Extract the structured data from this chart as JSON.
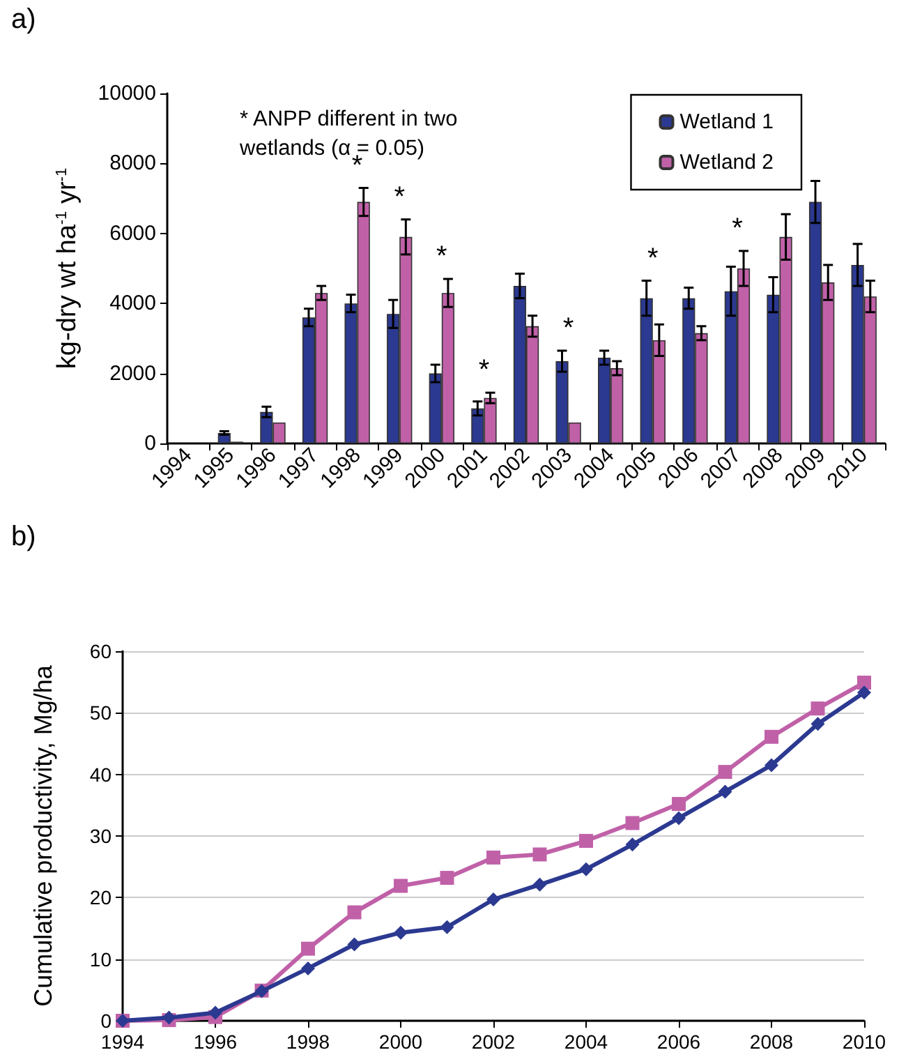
{
  "chart_data": [
    {
      "type": "bar",
      "title": "a)",
      "ylabel": "kg-dry wt ha$^{-1}$ yr$^{-1}$",
      "categories": [
        "1994",
        "1995",
        "1996",
        "1997",
        "1998",
        "1999",
        "2000",
        "2001",
        "2002",
        "2003",
        "2004",
        "2005",
        "2006",
        "2007",
        "2008",
        "2009",
        "2010"
      ],
      "series": [
        {
          "name": "Wetland 1",
          "color": "#2b3990",
          "values": [
            0,
            300,
            900,
            3600,
            4000,
            3700,
            2000,
            1000,
            4500,
            2350,
            2450,
            4150,
            4150,
            4350,
            4250,
            6900,
            5100
          ],
          "errors": [
            null,
            50,
            150,
            250,
            250,
            400,
            250,
            200,
            350,
            300,
            200,
            500,
            300,
            700,
            500,
            600,
            600
          ]
        },
        {
          "name": "Wetland 2",
          "color": "#c061a8",
          "values": [
            0,
            50,
            600,
            4300,
            6900,
            5900,
            4300,
            1300,
            3350,
            600,
            2150,
            2950,
            3150,
            5000,
            5900,
            4600,
            4200
          ],
          "errors": [
            null,
            null,
            null,
            200,
            400,
            500,
            400,
            150,
            300,
            null,
            200,
            450,
            200,
            500,
            650,
            500,
            450
          ]
        }
      ],
      "ylim": [
        0,
        10000
      ],
      "yticks": [
        0,
        2000,
        4000,
        6000,
        8000,
        10000
      ],
      "grid": false,
      "legend": "top right",
      "annotations": [
        "* ANPP different in two wetlands (α = 0.05)",
        {
          "text": "*",
          "x": "1998",
          "y": 6900
        },
        {
          "text": "*",
          "x": "1999",
          "y": 5900
        },
        {
          "text": "*",
          "x": "2000",
          "y": 4300
        },
        {
          "text": "*",
          "x": "2001",
          "y": 1300
        },
        {
          "text": "*",
          "x": "2003",
          "y": 2350
        },
        {
          "text": "*",
          "x": "2005",
          "y": 4150
        },
        {
          "text": "*",
          "x": "2007",
          "y": 5000
        }
      ]
    },
    {
      "type": "line",
      "title": "b)",
      "ylabel": "Cumulative productivity, Mg/ha",
      "x": [
        1994,
        1995,
        1996,
        1997,
        1998,
        1999,
        2000,
        2001,
        2002,
        2003,
        2004,
        2005,
        2006,
        2007,
        2008,
        2009,
        2010
      ],
      "series": [
        {
          "color": "#2b3990",
          "marker": "diamond",
          "values": [
            0,
            0.5,
            1.3,
            4.8,
            8.5,
            12.4,
            14.3,
            15.2,
            19.7,
            22.1,
            24.6,
            28.6,
            32.9,
            37.2,
            41.5,
            48.2,
            53.3
          ]
        },
        {
          "color": "#c061a8",
          "marker": "square",
          "values": [
            0,
            0.1,
            0.6,
            4.9,
            11.7,
            17.6,
            21.9,
            23.2,
            26.5,
            27.0,
            29.2,
            32.1,
            35.2,
            40.4,
            46.1,
            50.7,
            54.9
          ]
        }
      ],
      "xlim": [
        1994,
        2010
      ],
      "xticks": [
        1994,
        1996,
        1998,
        2000,
        2002,
        2004,
        2006,
        2008,
        2010
      ],
      "ylim": [
        0,
        60
      ],
      "yticks": [
        0,
        10,
        20,
        30,
        40,
        50,
        60
      ],
      "grid": "y",
      "legend": false
    }
  ]
}
